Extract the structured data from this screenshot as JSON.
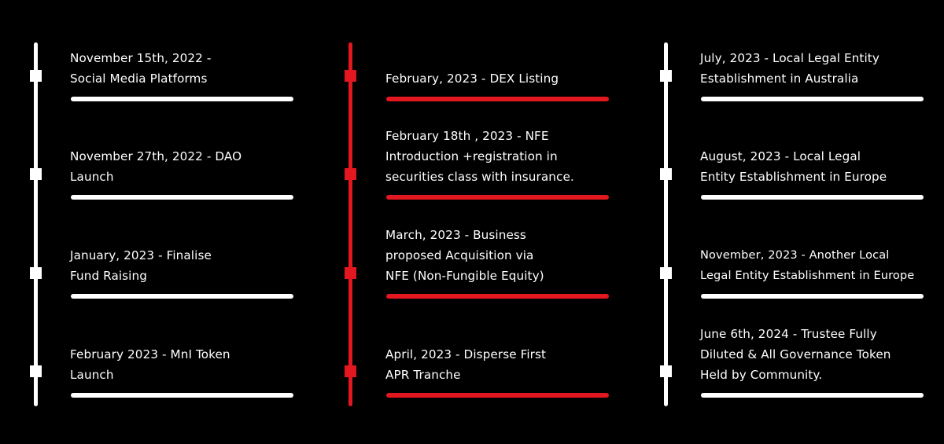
{
  "colors": {
    "background": "#000000",
    "text": "#ffffff",
    "white_line": "#ffffff",
    "red_line": "#e3171f"
  },
  "columns": [
    {
      "accent": "white",
      "items": [
        {
          "text": "November 15th, 2022 -\nSocial Media Platforms"
        },
        {
          "text": "November 27th, 2022 - DAO\nLaunch"
        },
        {
          "text": "January, 2023 - Finalise\nFund Raising"
        },
        {
          "text": "February 2023 - MnI Token\nLaunch"
        }
      ]
    },
    {
      "accent": "red",
      "items": [
        {
          "text": "February, 2023 - DEX Listing"
        },
        {
          "text": "February 18th , 2023 - NFE\nIntroduction +registration in\nsecurities class with insurance."
        },
        {
          "text": "March, 2023 - Business\nproposed Acquisition via\nNFE (Non-Fungible Equity)"
        },
        {
          "text": "April, 2023 - Disperse First\nAPR Tranche"
        }
      ]
    },
    {
      "accent": "white",
      "items": [
        {
          "text": "July, 2023 - Local Legal Entity\nEstablishment in Australia"
        },
        {
          "text": "August, 2023 - Local Legal\nEntity Establishment in Europe"
        },
        {
          "text": "November, 2023 - Another Local\nLegal Entity Establishment in Europe"
        },
        {
          "text": "June 6th, 2024 - Trustee Fully\nDiluted & All Governance Token\nHeld by Community."
        }
      ]
    }
  ]
}
